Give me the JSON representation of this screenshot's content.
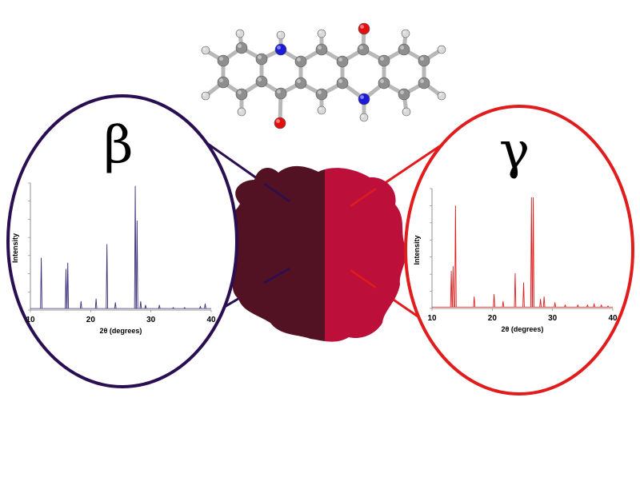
{
  "molecule": {
    "atom_colors": {
      "C": "#8e8e8e",
      "H": "#d9d9d9",
      "N": "#1c1cd8",
      "O": "#e01010"
    },
    "bond_color": "#b8b8b8"
  },
  "sample_image": {
    "left_color": "#5a1428",
    "right_color": "#bc0f3a",
    "description": "powder sample split into two polymorph colors"
  },
  "beta": {
    "symbol": "β",
    "color": "#2a0e52"
  },
  "gamma": {
    "symbol": "γ",
    "color": "#e01c1c"
  },
  "chart_data": [
    {
      "type": "line",
      "series": [
        {
          "name": "",
          "color": "#3b2d78",
          "peaks": [
            [
              11.8,
              0.42
            ],
            [
              15.9,
              0.33
            ],
            [
              16.2,
              0.38
            ],
            [
              18.4,
              0.07
            ],
            [
              20.9,
              0.09
            ],
            [
              22.7,
              0.53
            ],
            [
              24.1,
              0.06
            ],
            [
              27.4,
              1.0
            ],
            [
              27.7,
              0.72
            ],
            [
              28.3,
              0.07
            ],
            [
              29.1,
              0.04
            ],
            [
              31.4,
              0.04
            ],
            [
              33.7,
              0.02
            ],
            [
              35.6,
              0.02
            ],
            [
              38.2,
              0.03
            ],
            [
              39.0,
              0.05
            ]
          ]
        }
      ],
      "xlim": [
        10,
        40
      ],
      "x_ticks": [
        10,
        20,
        30,
        40
      ],
      "xlabel": "2θ (degrees)",
      "ylabel": "Intensity"
    },
    {
      "type": "line",
      "series": [
        {
          "name": "",
          "color": "#e01c1c",
          "peaks": [
            [
              13.2,
              0.32
            ],
            [
              13.5,
              0.36
            ],
            [
              13.9,
              0.88
            ],
            [
              17.0,
              0.1
            ],
            [
              20.3,
              0.12
            ],
            [
              21.8,
              0.06
            ],
            [
              23.8,
              0.3
            ],
            [
              25.2,
              0.22
            ],
            [
              26.5,
              0.95
            ],
            [
              26.8,
              0.95
            ],
            [
              28.0,
              0.08
            ],
            [
              28.6,
              0.1
            ],
            [
              30.4,
              0.05
            ],
            [
              32.1,
              0.03
            ],
            [
              34.2,
              0.03
            ],
            [
              35.8,
              0.03
            ],
            [
              36.9,
              0.04
            ],
            [
              38.1,
              0.03
            ],
            [
              39.2,
              0.02
            ]
          ]
        }
      ],
      "xlim": [
        10,
        40
      ],
      "x_ticks": [
        10,
        20,
        30,
        40
      ],
      "xlabel": "2θ (degrees)",
      "ylabel": "Intensity"
    }
  ]
}
